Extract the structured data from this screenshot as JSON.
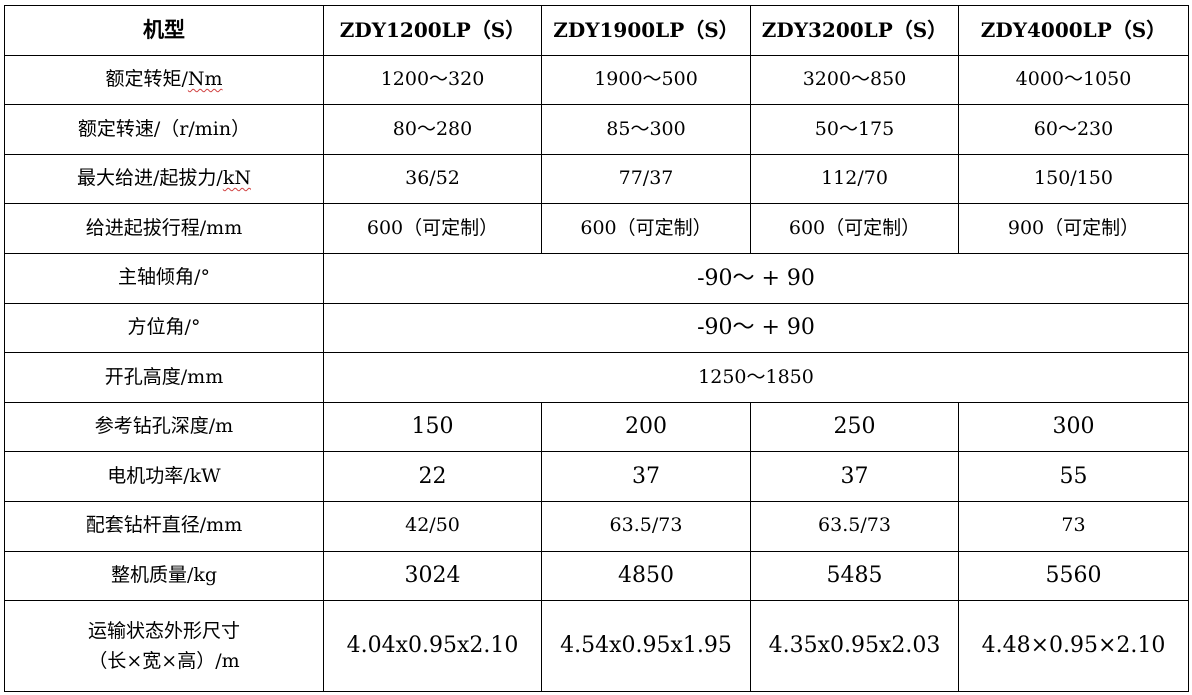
{
  "table": {
    "header": {
      "label": "机型",
      "models": [
        "ZDY1200LP（S）",
        "ZDY1900LP（S）",
        "ZDY3200LP（S）",
        "ZDY4000LP（S）"
      ]
    },
    "rows": [
      {
        "label_main": "额定转矩/",
        "label_unit": "Nm",
        "values": [
          "1200～320",
          "1900～500",
          "3200～850",
          "4000～1050"
        ]
      },
      {
        "label": "额定转速/（r/min）",
        "values": [
          "80～280",
          "85～300",
          "50～175",
          "60～230"
        ]
      },
      {
        "label_main": "最大给进/起拔力/",
        "label_unit": "kN",
        "values": [
          "36/52",
          "77/37",
          "112/70",
          "150/150"
        ]
      },
      {
        "label": "给进起拔行程/mm",
        "values": [
          "600（可定制）",
          "600（可定制）",
          "600（可定制）",
          "900（可定制）"
        ]
      },
      {
        "label": "主轴倾角/°",
        "merged_value": "-90～ + 90"
      },
      {
        "label": "方位角/°",
        "merged_value": "-90～ + 90"
      },
      {
        "label": "开孔高度/mm",
        "merged_value": "1250～1850"
      },
      {
        "label": "参考钻孔深度/m",
        "values": [
          "150",
          "200",
          "250",
          "300"
        ]
      },
      {
        "label": "电机功率/kW",
        "values": [
          "22",
          "37",
          "37",
          "55"
        ]
      },
      {
        "label": "配套钻杆直径/mm",
        "values": [
          "42/50",
          "63.5/73",
          "63.5/73",
          "73"
        ]
      },
      {
        "label": "整机质量/kg",
        "values": [
          "3024",
          "4850",
          "5485",
          "5560"
        ]
      },
      {
        "label_line1": "运输状态外形尺寸",
        "label_line2": "（长×宽×高）/m",
        "values": [
          "4.04x0.95x2.10",
          "4.54x0.95x1.95",
          "4.35x0.95x2.03",
          "4.48×0.95×2.10"
        ]
      }
    ]
  }
}
